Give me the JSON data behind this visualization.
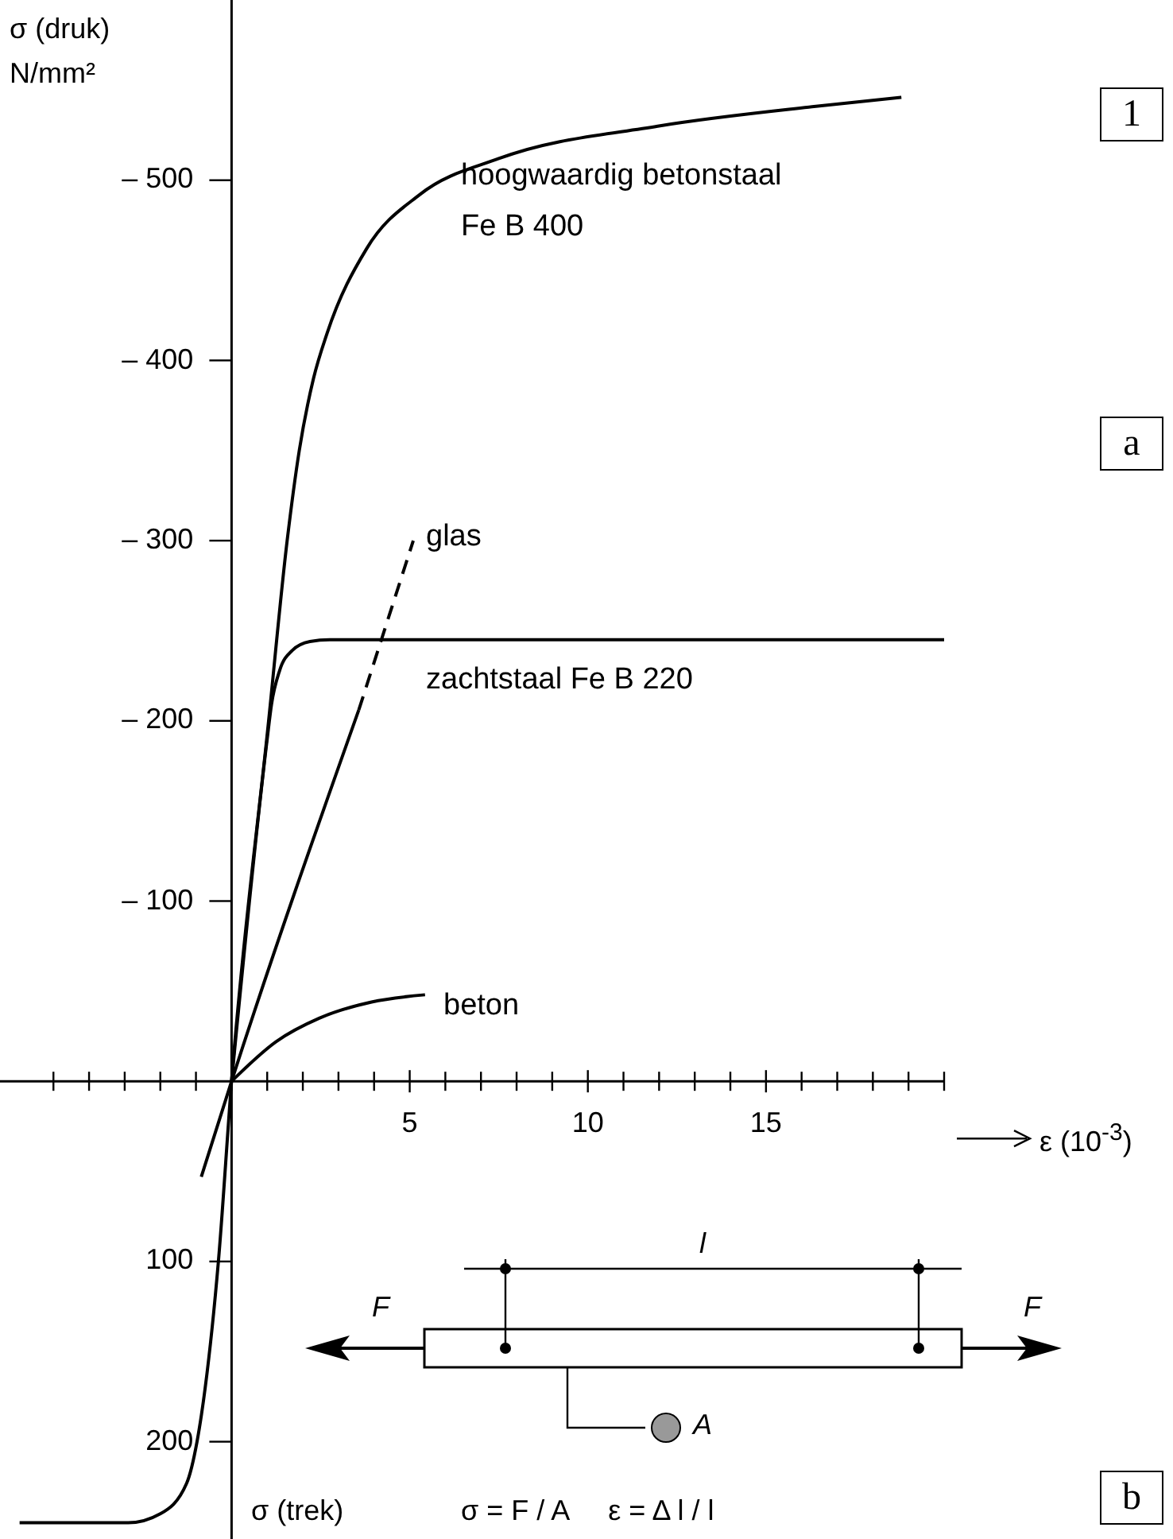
{
  "chart_data": {
    "type": "line",
    "xlabel": "ε (10$^{-3}$)",
    "ylabel": "σ (druk)\nN/mm²",
    "marker": "none",
    "xlim": [
      -6.5,
      20
    ],
    "ylim": [
      254,
      -600
    ],
    "xticks": [
      {
        "value": -5,
        "label": null
      },
      {
        "value": -4,
        "label": null
      },
      {
        "value": -3,
        "label": null
      },
      {
        "value": -2,
        "label": null
      },
      {
        "value": -1,
        "label": null
      },
      {
        "value": 0,
        "label": null
      },
      {
        "value": 1,
        "label": null
      },
      {
        "value": 2,
        "label": null
      },
      {
        "value": 3,
        "label": null
      },
      {
        "value": 4,
        "label": null
      },
      5,
      {
        "value": 6,
        "label": null
      },
      {
        "value": 7,
        "label": null
      },
      {
        "value": 8,
        "label": null
      },
      {
        "value": 9,
        "label": null
      },
      10,
      {
        "value": 11,
        "label": null
      },
      {
        "value": 12,
        "label": null
      },
      {
        "value": 13,
        "label": null
      },
      {
        "value": 14,
        "label": null
      },
      15,
      {
        "value": 16,
        "label": null
      },
      {
        "value": 17,
        "label": null
      },
      {
        "value": 18,
        "label": null
      },
      {
        "value": 19,
        "label": null
      },
      {
        "value": 20,
        "label": null
      }
    ],
    "yticks": [
      {
        "value": -500,
        "label": "– 500"
      },
      {
        "value": -400,
        "label": "– 400"
      },
      {
        "value": -300,
        "label": "– 300"
      },
      {
        "value": -200,
        "label": "– 200"
      },
      {
        "value": -100,
        "label": "– 100"
      },
      100,
      200
    ],
    "series": [
      {
        "name": "hoogwaardig betonstaal\nFe B 400",
        "color": "#000000",
        "line_style": "solid",
        "x": [
          -5.95,
          -2.9,
          -2.0,
          -1.26,
          -0.97,
          -0.74,
          -0.37,
          0,
          1.04,
          1.56,
          1.9,
          2.3,
          2.68,
          3.79,
          5.28,
          7.5,
          11.96,
          16.4,
          18.8
        ],
        "values": [
          245,
          245,
          240,
          223,
          200,
          170,
          100,
          0,
          -200,
          -300,
          -350,
          -390,
          -415,
          -462,
          -492,
          -512,
          -530,
          -541,
          -546
        ]
      },
      {
        "color": "#000000",
        "line_style": "solid",
        "x": [
          -0.85,
          0,
          3.57
        ],
        "values": [
          53,
          0,
          -206
        ]
      },
      {
        "name": "glas",
        "color": "#000000",
        "line_style": "dashed",
        "x": [
          3.57,
          5.1
        ],
        "values": [
          -206,
          -300
        ]
      },
      {
        "name": "zachtstaal Fe B 220",
        "color": "#000000",
        "line_style": "solid",
        "x": [
          0,
          1.0,
          1.12,
          1.35,
          1.7,
          2.2,
          2.75,
          20
        ],
        "values": [
          0,
          -190,
          -209,
          -228,
          -239,
          -244,
          -245,
          -245
        ]
      },
      {
        "name": "beton",
        "color": "#000000",
        "line_style": "solid",
        "x": [
          0,
          1.25,
          2.46,
          3.93,
          5.43
        ],
        "values": [
          0,
          -22,
          -35,
          -44,
          -48
        ]
      }
    ],
    "annotations": [
      "1",
      "a",
      "b",
      "σ (trek)",
      "σ = F / A     ε = Δ l / l",
      "F",
      "F",
      "l",
      "A"
    ]
  }
}
